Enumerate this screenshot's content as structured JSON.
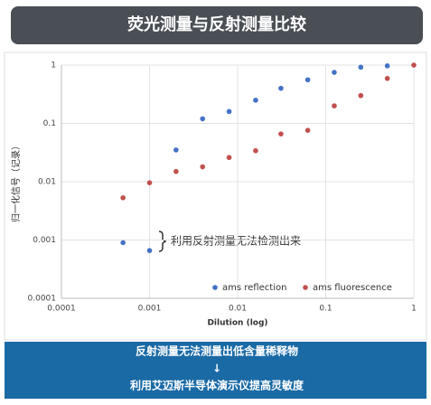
{
  "header": {
    "title": "荧光测量与反射测量比较"
  },
  "chart_data": {
    "type": "scatter",
    "x_label": "Dilution (log)",
    "y_label": "归一化信号（记录）",
    "xlim": [
      0.0001,
      1
    ],
    "ylim": [
      0.0001,
      1
    ],
    "xticks": [
      0.0001,
      0.001,
      0.01,
      0.1,
      1
    ],
    "yticks": [
      0.0001,
      0.001,
      0.01,
      0.1,
      1
    ],
    "xscale": "log",
    "yscale": "log",
    "grid": true,
    "legend": "bottom-right",
    "annotation": "利用反射测量无法检测出来",
    "series": [
      {
        "name": "ams reflection",
        "color": "#4472c4",
        "x": [
          0.0005,
          0.001,
          0.002,
          0.004,
          0.008,
          0.016,
          0.031,
          0.0625,
          0.125,
          0.25,
          0.5
        ],
        "values": [
          0.0009,
          0.00066,
          0.035,
          0.12,
          0.16,
          0.25,
          0.4,
          0.56,
          0.75,
          0.92,
          0.97
        ]
      },
      {
        "name": "ams fluorescence",
        "color": "#c0504d",
        "x": [
          0.0005,
          0.001,
          0.002,
          0.004,
          0.008,
          0.016,
          0.031,
          0.0625,
          0.125,
          0.25,
          0.5,
          1
        ],
        "values": [
          0.0053,
          0.0096,
          0.015,
          0.018,
          0.026,
          0.034,
          0.066,
          0.076,
          0.2,
          0.3,
          0.59,
          1
        ]
      }
    ]
  },
  "footer": {
    "lines": [
      "反射测量无法测量出低含量稀释物",
      "↓",
      "利用艾迈斯半导体演示仪提高灵敏度"
    ]
  }
}
